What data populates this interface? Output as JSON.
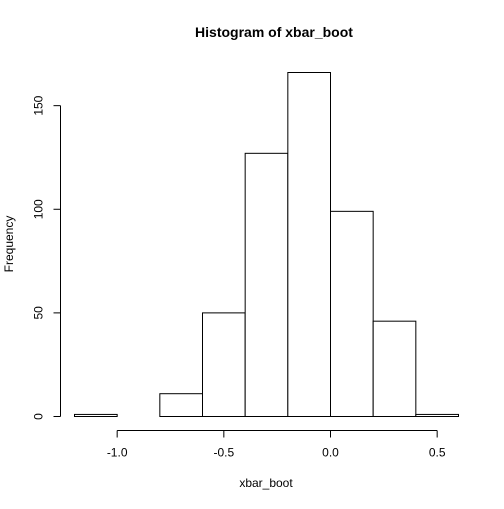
{
  "chart_data": {
    "type": "bar",
    "subtype": "histogram",
    "title": "Histogram of xbar_boot",
    "xlabel": "xbar_boot",
    "ylabel": "Frequency",
    "bin_edges": [
      -1.2,
      -1.0,
      -0.8,
      -0.6,
      -0.4,
      -0.2,
      0.0,
      0.2,
      0.4,
      0.6
    ],
    "values": [
      1,
      0,
      11,
      50,
      127,
      166,
      99,
      46,
      1
    ],
    "xlim": [
      -1.2,
      0.6
    ],
    "ylim": [
      0,
      166
    ],
    "x_ticks": [
      -1.0,
      -0.5,
      0.0,
      0.5
    ],
    "x_tick_labels": [
      "-1.0",
      "-0.5",
      "0.0",
      "0.5"
    ],
    "y_ticks": [
      0,
      50,
      100,
      150
    ],
    "y_tick_labels": [
      "0",
      "50",
      "100",
      "150"
    ],
    "grid": false,
    "legend": "none",
    "bar_fill": "#ffffff",
    "bar_stroke": "#000000"
  }
}
